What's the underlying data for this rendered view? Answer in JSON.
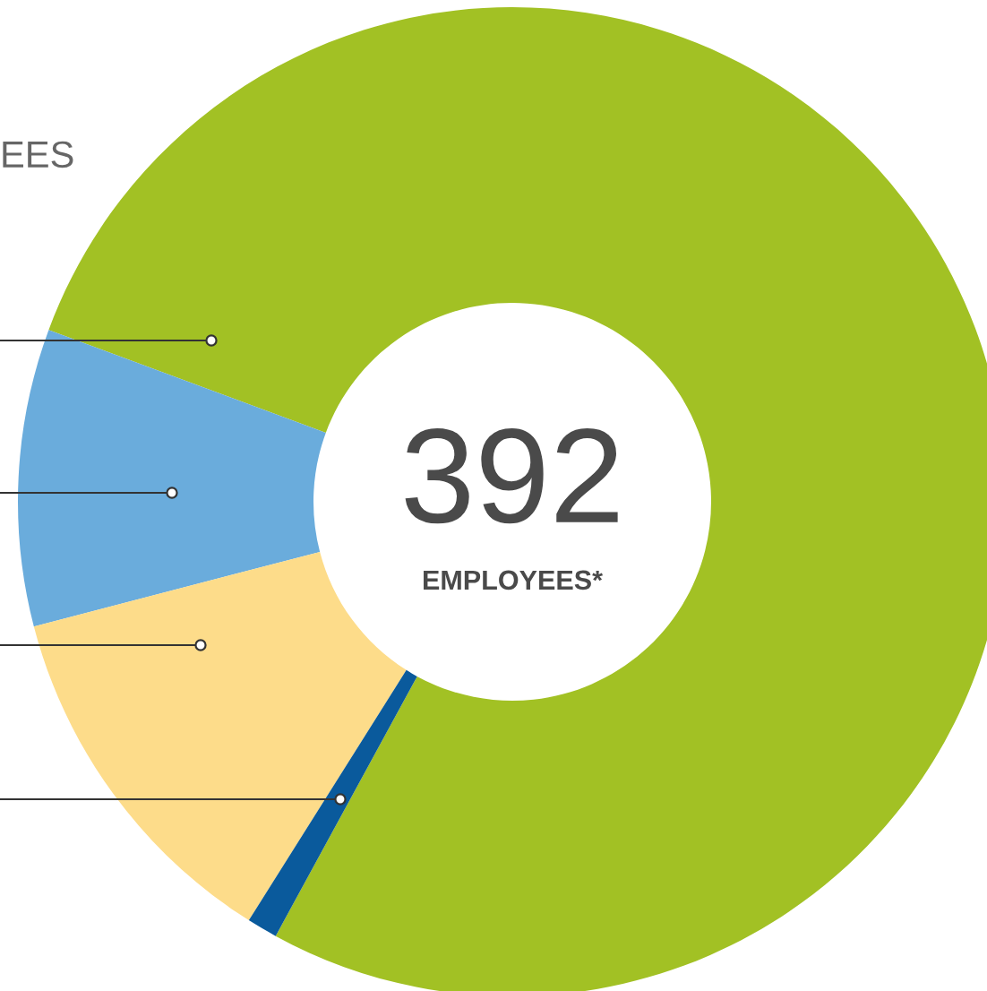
{
  "chart_data": {
    "type": "donut",
    "categories": [
      null,
      null,
      null,
      null
    ],
    "values": [
      77.3,
      9.7,
      12.0,
      1.0
    ],
    "colors": [
      "#a2c124",
      "#6aacdc",
      "#fddc8a",
      "#0a5a9c"
    ],
    "annotations": [
      "392",
      "EMPLOYEES*",
      "EES"
    ],
    "legend": false
  }
}
